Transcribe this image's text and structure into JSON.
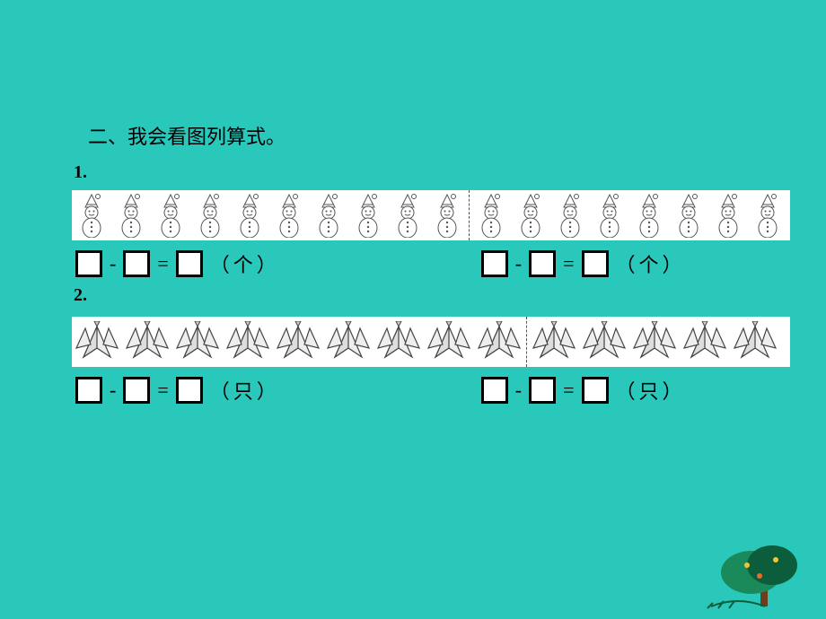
{
  "title": "二、我会看图列算式。",
  "problems": [
    {
      "num_label": "1.",
      "icon": "snowman",
      "left_count": 10,
      "right_count": 8,
      "unit": "（个）",
      "row_class": "snowman-row"
    },
    {
      "num_label": "2.",
      "icon": "crane",
      "left_count": 9,
      "right_count": 5,
      "unit": "（只）",
      "row_class": "crane-row"
    }
  ],
  "ops": {
    "minus": "-",
    "equals": "="
  },
  "colors": {
    "background": "#2ac7bb",
    "panel": "#ffffff",
    "text": "#000000",
    "box_border": "#000000",
    "divider": "#555555",
    "tree_dark": "#0b5d3b",
    "tree_trunk": "#6b3f1d"
  }
}
